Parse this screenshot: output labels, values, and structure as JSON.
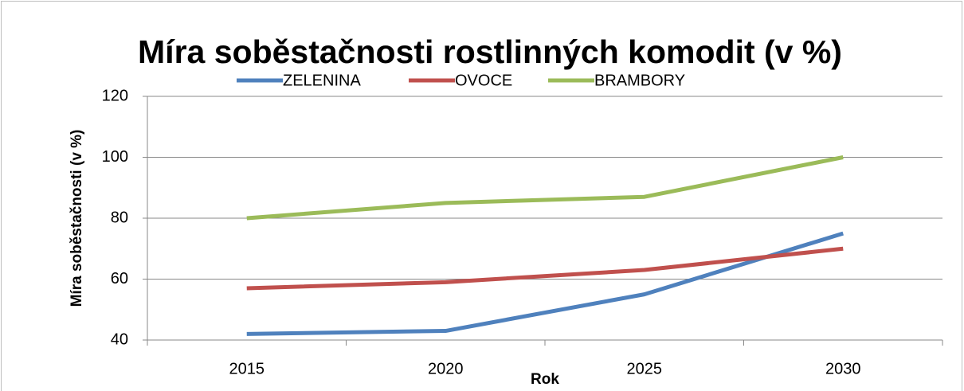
{
  "chart_data": {
    "type": "line",
    "title": "Míra soběstačnosti rostlinných komodit (v %)",
    "x_label": "Rok",
    "y_label": "Míra soběstačnosti (v %)",
    "categories": [
      "2015",
      "2020",
      "2025",
      "2030"
    ],
    "series": [
      {
        "name": "ZELENINA",
        "color": "#4f81bd",
        "values": [
          42,
          43,
          55,
          75
        ]
      },
      {
        "name": "OVOCE",
        "color": "#c0504d",
        "values": [
          57,
          59,
          63,
          70
        ]
      },
      {
        "name": "BRAMBORY",
        "color": "#9bbb59",
        "values": [
          80,
          85,
          87,
          100
        ]
      }
    ],
    "ylim": [
      40,
      120
    ],
    "yticks": [
      40,
      60,
      80,
      100,
      120
    ],
    "grid": true,
    "legend": "top"
  }
}
